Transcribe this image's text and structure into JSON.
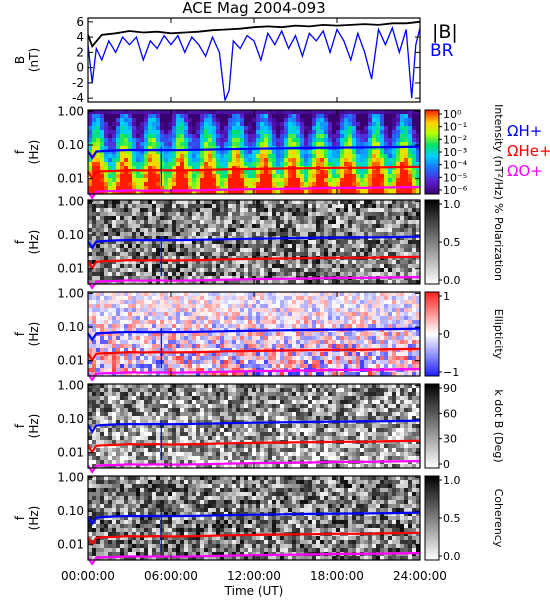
{
  "title": "ACE Mag 2004-093",
  "xaxis": {
    "label": "Time (UT)",
    "ticks": [
      "00:00:00",
      "06:00:00",
      "12:00:00",
      "18:00:00",
      "24:00:00"
    ],
    "tick_hours": [
      0,
      6,
      12,
      18,
      24
    ],
    "range_hours": [
      0,
      24
    ]
  },
  "chart_data": [
    {
      "type": "line",
      "ylabel": "B (nT)",
      "ylim": [
        -4.5,
        6.5
      ],
      "yticks": [
        "6",
        "4",
        "2",
        "0",
        "-2",
        "-4"
      ],
      "ytick_values": [
        6,
        4,
        2,
        0,
        -2,
        -4
      ],
      "series": [
        {
          "name": "|B|",
          "color": "#000000",
          "x": [
            0,
            0.3,
            1,
            2,
            3,
            4,
            5,
            6,
            7,
            8,
            9,
            10,
            11,
            12,
            13,
            14,
            15,
            16,
            17,
            18,
            19,
            20,
            21,
            22,
            23,
            24
          ],
          "y": [
            4.3,
            2.8,
            4.3,
            4.5,
            4.8,
            4.6,
            4.7,
            4.5,
            4.6,
            4.7,
            4.9,
            5.0,
            5.1,
            5.3,
            5.4,
            5.3,
            5.5,
            5.4,
            5.6,
            5.5,
            5.6,
            5.7,
            5.6,
            5.8,
            5.8,
            6.0
          ]
        },
        {
          "name": "BR",
          "color": "#0000ff",
          "x": [
            0,
            0.3,
            0.6,
            1,
            1.5,
            2,
            2.5,
            3,
            3.5,
            4,
            4.5,
            5,
            5.5,
            6,
            6.5,
            7,
            7.5,
            8,
            8.5,
            9,
            9.5,
            9.9,
            10.2,
            10.5,
            11,
            11.5,
            12,
            12.5,
            13,
            13.5,
            14,
            14.5,
            15,
            15.5,
            16,
            16.5,
            17,
            17.5,
            18,
            18.5,
            19,
            19.5,
            20,
            20.5,
            21,
            21.5,
            22,
            22.5,
            23,
            23.4,
            23.7,
            24
          ],
          "y": [
            3.0,
            -2.0,
            2.5,
            1.0,
            3.5,
            2.0,
            4.0,
            3.0,
            4.0,
            1.0,
            3.5,
            2.5,
            4.2,
            3.0,
            4.2,
            2.0,
            4.0,
            3.0,
            1.5,
            4.0,
            2.0,
            -4.3,
            -3.0,
            3.5,
            2.5,
            4.2,
            3.5,
            1.0,
            4.5,
            3.0,
            4.8,
            2.5,
            4.2,
            1.5,
            4.5,
            3.5,
            4.8,
            2.0,
            5.0,
            3.5,
            1.0,
            4.5,
            2.0,
            -1.5,
            5.0,
            3.0,
            5.2,
            2.0,
            5.0,
            -4.0,
            3.0,
            5.2
          ]
        }
      ]
    },
    {
      "type": "heatmap",
      "ylabel": "f (Hz)",
      "yscale": "log",
      "ylim": [
        0.0035,
        1.1
      ],
      "yticks": [
        "1.00",
        "0.10",
        "0.01"
      ],
      "ytick_values": [
        1,
        0.1,
        0.01
      ],
      "colorbar": {
        "label": "Intensity (nT²/Hz)",
        "ticks": [
          "10⁰",
          "10⁻¹",
          "10⁻²",
          "10⁻³",
          "10⁻⁴",
          "10⁻⁵",
          "10⁻⁶"
        ],
        "colormap": "rainbow"
      }
    },
    {
      "type": "heatmap",
      "ylabel": "f (Hz)",
      "yscale": "log",
      "ylim": [
        0.0035,
        1.1
      ],
      "yticks": [
        "1.00",
        "0.10",
        "0.01"
      ],
      "ytick_values": [
        1,
        0.1,
        0.01
      ],
      "colorbar": {
        "label": "% Polarization",
        "ticks": [
          "1.0",
          "0.5",
          "0.0"
        ],
        "colormap": "gray"
      }
    },
    {
      "type": "heatmap",
      "ylabel": "f (Hz)",
      "yscale": "log",
      "ylim": [
        0.0035,
        1.1
      ],
      "yticks": [
        "1.00",
        "0.10",
        "0.01"
      ],
      "ytick_values": [
        1,
        0.1,
        0.01
      ],
      "colorbar": {
        "label": "Ellipticity",
        "ticks": [
          "1",
          "0",
          "−1"
        ],
        "colormap": "bluewhitered"
      }
    },
    {
      "type": "heatmap",
      "ylabel": "f (Hz)",
      "yscale": "log",
      "ylim": [
        0.0035,
        1.1
      ],
      "yticks": [
        "1.00",
        "0.10",
        "0.01"
      ],
      "ytick_values": [
        1,
        0.1,
        0.01
      ],
      "colorbar": {
        "label": "k dot B (Deg)",
        "ticks": [
          "90",
          "60",
          "30",
          "0"
        ],
        "colormap": "gray"
      }
    },
    {
      "type": "heatmap",
      "ylabel": "f (Hz)",
      "yscale": "log",
      "ylim": [
        0.0035,
        1.1
      ],
      "yticks": [
        "1.00",
        "0.10",
        "0.01"
      ],
      "ytick_values": [
        1,
        0.1,
        0.01
      ],
      "colorbar": {
        "label": "Coherency",
        "ticks": [
          "1.0",
          "0.5",
          "0.0"
        ],
        "colormap": "gray"
      }
    }
  ],
  "legend_top": [
    {
      "text": "|B|",
      "color": "#000000"
    },
    {
      "text": "BR",
      "color": "#0000ff"
    }
  ],
  "legend_gyro": [
    {
      "text": "ΩH+",
      "color": "#0000ff"
    },
    {
      "text": "ΩHe+",
      "color": "#ff0000"
    },
    {
      "text": "ΩO+",
      "color": "#ff00ff"
    }
  ],
  "gyro_lines": [
    {
      "name": "ΩH+",
      "color": "#0000ff",
      "x": [
        0,
        0.3,
        0.6,
        1,
        2,
        3,
        4,
        5,
        6,
        8,
        10,
        12,
        14,
        16,
        18,
        20,
        22,
        24
      ],
      "y": [
        0.065,
        0.042,
        0.064,
        0.066,
        0.069,
        0.071,
        0.07,
        0.071,
        0.07,
        0.072,
        0.075,
        0.078,
        0.08,
        0.082,
        0.084,
        0.085,
        0.087,
        0.09
      ]
    },
    {
      "name": "ΩHe+",
      "color": "#ff0000",
      "x": [
        0,
        0.3,
        0.6,
        1,
        2,
        3,
        4,
        5,
        6,
        8,
        10,
        12,
        14,
        16,
        18,
        20,
        22,
        24
      ],
      "y": [
        0.016,
        0.0105,
        0.016,
        0.0165,
        0.017,
        0.018,
        0.0175,
        0.018,
        0.0175,
        0.018,
        0.019,
        0.0195,
        0.02,
        0.0205,
        0.021,
        0.021,
        0.022,
        0.0225
      ]
    },
    {
      "name": "ΩO+",
      "color": "#ff00ff",
      "x": [
        0,
        0.3,
        0.6,
        1,
        2,
        3,
        4,
        5,
        6,
        8,
        10,
        12,
        14,
        16,
        18,
        20,
        22,
        24
      ],
      "y": [
        0.0041,
        0.0027,
        0.0041,
        0.0042,
        0.0043,
        0.0045,
        0.0044,
        0.0045,
        0.0044,
        0.0045,
        0.0047,
        0.0049,
        0.005,
        0.0051,
        0.0053,
        0.0053,
        0.0055,
        0.0056
      ]
    }
  ]
}
